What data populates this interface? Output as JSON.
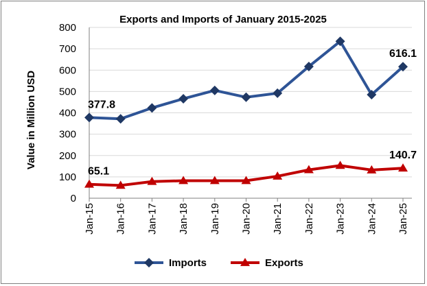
{
  "chart_data": {
    "type": "line",
    "title": "Exports and Imports of January 2015-2025",
    "xlabel": "",
    "ylabel": "Value in Million USD",
    "categories": [
      "Jan-15",
      "Jan-16",
      "Jan-17",
      "Jan-18",
      "Jan-19",
      "Jan-20",
      "Jan-21",
      "Jan-22",
      "Jan-23",
      "Jan-24",
      "Jan-25"
    ],
    "ylim": [
      0,
      800
    ],
    "yticks": [
      "0",
      "100",
      "200",
      "300",
      "400",
      "500",
      "600",
      "700",
      "800"
    ],
    "grid": true,
    "legend_position": "bottom",
    "series": [
      {
        "name": "Imports",
        "color": "#2e5496",
        "marker": "diamond",
        "marker_color": "#1f3864",
        "values": [
          377.8,
          372,
          423,
          466,
          505,
          473,
          492,
          617,
          735,
          485,
          616.1
        ]
      },
      {
        "name": "Exports",
        "color": "#c00000",
        "marker": "triangle",
        "marker_color": "#c00000",
        "values": [
          65.1,
          60,
          78,
          82,
          82,
          82,
          103,
          133,
          153,
          132,
          140.7
        ]
      }
    ],
    "data_labels": [
      {
        "series": 0,
        "index": 0,
        "text": "377.8"
      },
      {
        "series": 0,
        "index": 10,
        "text": "616.1"
      },
      {
        "series": 1,
        "index": 0,
        "text": "65.1"
      },
      {
        "series": 1,
        "index": 10,
        "text": "140.7"
      }
    ]
  }
}
